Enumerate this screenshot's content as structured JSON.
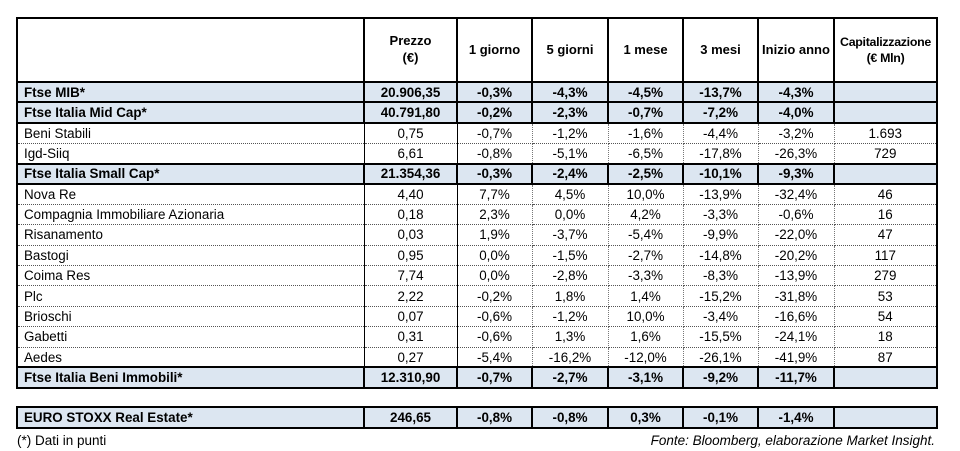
{
  "colors": {
    "highlight_row_bg": "#dce6f1",
    "border": "#000000",
    "text": "#000000"
  },
  "chart_data": {
    "type": "table",
    "title": "",
    "columns": [
      {
        "id": "name",
        "label": "",
        "sub": ""
      },
      {
        "id": "prezzo",
        "label": "Prezzo",
        "sub": "(€)"
      },
      {
        "id": "d1",
        "label": "1 giorno",
        "sub": ""
      },
      {
        "id": "d5",
        "label": "5 giorni",
        "sub": ""
      },
      {
        "id": "m1",
        "label": "1 mese",
        "sub": ""
      },
      {
        "id": "m3",
        "label": "3 mesi",
        "sub": ""
      },
      {
        "id": "ytd",
        "label": "Inizio anno",
        "sub": ""
      },
      {
        "id": "cap",
        "label": "Capitalizzazione",
        "sub": "(€ Mln)"
      }
    ],
    "rows": [
      {
        "name": "Ftse MIB*",
        "kind": "index",
        "values": [
          "20.906,35",
          "-0,3%",
          "-4,3%",
          "-4,5%",
          "-13,7%",
          "-4,3%",
          ""
        ]
      },
      {
        "name": "Ftse Italia Mid Cap*",
        "kind": "index",
        "values": [
          "40.791,80",
          "-0,2%",
          "-2,3%",
          "-0,7%",
          "-7,2%",
          "-4,0%",
          ""
        ]
      },
      {
        "name": "Beni Stabili",
        "kind": "stock",
        "values": [
          "0,75",
          "-0,7%",
          "-1,2%",
          "-1,6%",
          "-4,4%",
          "-3,2%",
          "1.693"
        ]
      },
      {
        "name": "Igd-Siiq",
        "kind": "stock",
        "values": [
          "6,61",
          "-0,8%",
          "-5,1%",
          "-6,5%",
          "-17,8%",
          "-26,3%",
          "729"
        ]
      },
      {
        "name": "Ftse Italia Small Cap*",
        "kind": "index",
        "values": [
          "21.354,36",
          "-0,3%",
          "-2,4%",
          "-2,5%",
          "-10,1%",
          "-9,3%",
          ""
        ]
      },
      {
        "name": "Nova Re",
        "kind": "stock",
        "values": [
          "4,40",
          "7,7%",
          "4,5%",
          "10,0%",
          "-13,9%",
          "-32,4%",
          "46"
        ]
      },
      {
        "name": "Compagnia Immobiliare Azionaria",
        "kind": "stock",
        "values": [
          "0,18",
          "2,3%",
          "0,0%",
          "4,2%",
          "-3,3%",
          "-0,6%",
          "16"
        ]
      },
      {
        "name": "Risanamento",
        "kind": "stock",
        "values": [
          "0,03",
          "1,9%",
          "-3,7%",
          "-5,4%",
          "-9,9%",
          "-22,0%",
          "47"
        ]
      },
      {
        "name": "Bastogi",
        "kind": "stock",
        "values": [
          "0,95",
          "0,0%",
          "-1,5%",
          "-2,7%",
          "-14,8%",
          "-20,2%",
          "117"
        ]
      },
      {
        "name": "Coima Res",
        "kind": "stock",
        "values": [
          "7,74",
          "0,0%",
          "-2,8%",
          "-3,3%",
          "-8,3%",
          "-13,9%",
          "279"
        ]
      },
      {
        "name": "Plc",
        "kind": "stock",
        "values": [
          "2,22",
          "-0,2%",
          "1,8%",
          "1,4%",
          "-15,2%",
          "-31,8%",
          "53"
        ]
      },
      {
        "name": "Brioschi",
        "kind": "stock",
        "values": [
          "0,07",
          "-0,6%",
          "-1,2%",
          "10,0%",
          "-3,4%",
          "-16,6%",
          "54"
        ]
      },
      {
        "name": "Gabetti",
        "kind": "stock",
        "values": [
          "0,31",
          "-0,6%",
          "1,3%",
          "1,6%",
          "-15,5%",
          "-24,1%",
          "18"
        ]
      },
      {
        "name": "Aedes",
        "kind": "stock",
        "values": [
          "0,27",
          "-5,4%",
          "-16,2%",
          "-12,0%",
          "-26,1%",
          "-41,9%",
          "87"
        ]
      },
      {
        "name": "Ftse Italia Beni Immobili*",
        "kind": "index",
        "values": [
          "12.310,90",
          "-0,7%",
          "-2,7%",
          "-3,1%",
          "-9,2%",
          "-11,7%",
          ""
        ]
      }
    ],
    "separate_rows": [
      {
        "name": "EURO STOXX Real Estate*",
        "kind": "index",
        "values": [
          "246,65",
          "-0,8%",
          "-0,8%",
          "0,3%",
          "-0,1%",
          "-1,4%",
          ""
        ]
      }
    ]
  },
  "footer": {
    "note": "(*) Dati in punti",
    "source": "Fonte: Bloomberg, elaborazione Market Insight."
  }
}
